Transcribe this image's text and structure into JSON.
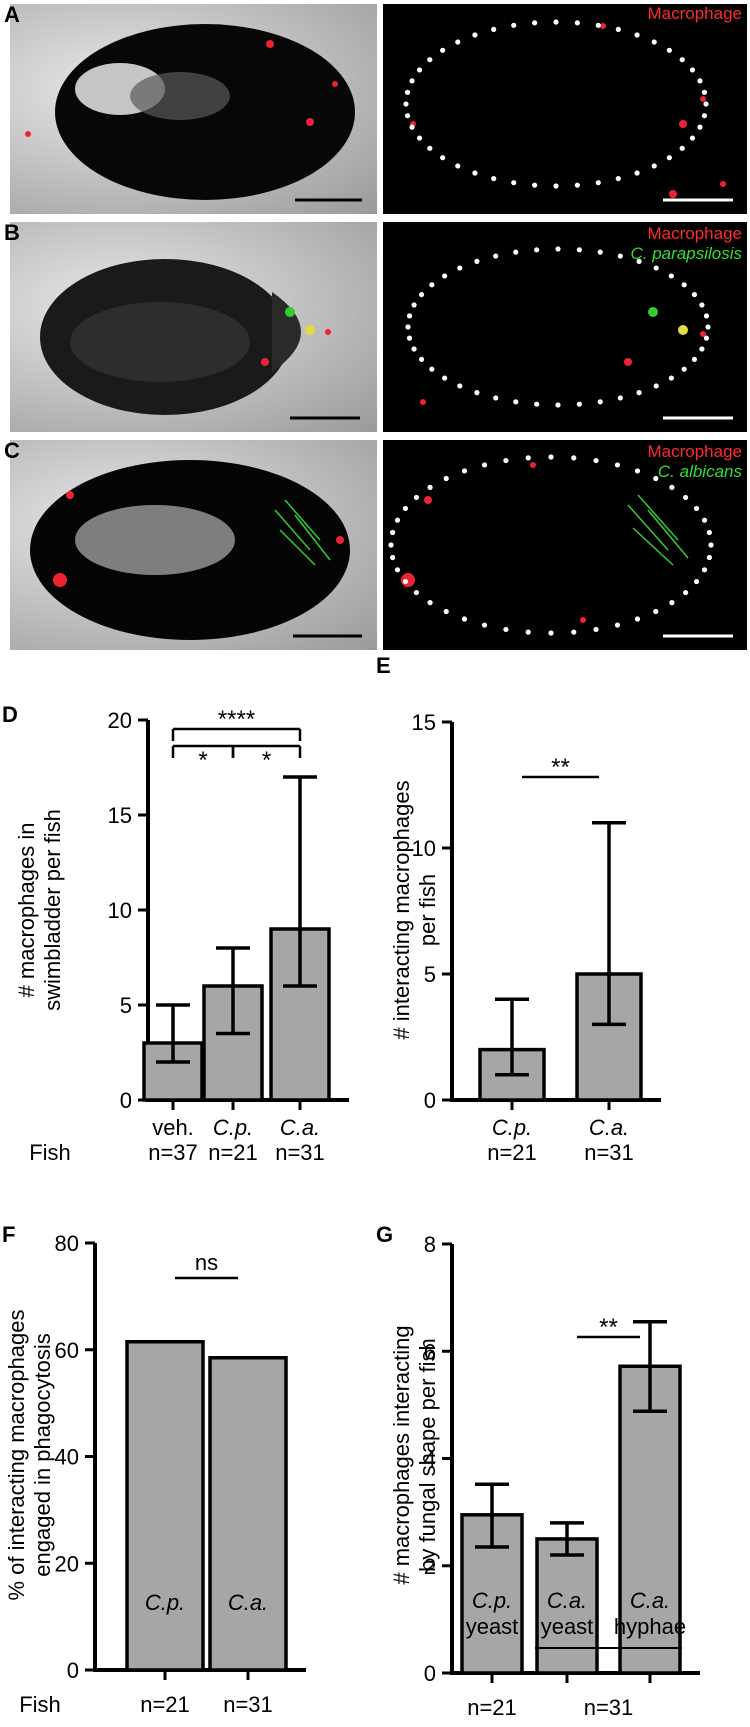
{
  "micrographs": {
    "rowA": {
      "letter": "A",
      "labels": [
        {
          "text": "Macrophage",
          "color": "#ff2a2a",
          "italic": false
        }
      ]
    },
    "rowB": {
      "letter": "B",
      "labels": [
        {
          "text": "Macrophage",
          "color": "#ff2a2a",
          "italic": false
        },
        {
          "text": "C. parapsilosis",
          "color": "#33dd33",
          "italic": true
        }
      ]
    },
    "rowC": {
      "letter": "C",
      "labels": [
        {
          "text": "Macrophage",
          "color": "#ff2a2a",
          "italic": false
        },
        {
          "text": "C. albicans",
          "color": "#33dd33",
          "italic": true
        }
      ]
    }
  },
  "fish_label": "Fish",
  "colors": {
    "bar_fill": "#a6a6a6",
    "macrophage": "#ff2a2a",
    "fungus": "#33dd33"
  },
  "chart_data": [
    {
      "panel": "D",
      "type": "bar",
      "ylabel": [
        "# macrophages in",
        "swimbladder per fish"
      ],
      "categories": [
        "veh.",
        "C.p.",
        "C.a."
      ],
      "categories_italic": [
        false,
        true,
        true
      ],
      "values": [
        3,
        6,
        9
      ],
      "error_low": [
        2,
        3.5,
        6
      ],
      "error_high": [
        5,
        8,
        17
      ],
      "ylim": [
        0,
        20
      ],
      "yticks": [
        "0",
        "5",
        "10",
        "15",
        "20"
      ],
      "n_labels": [
        "n=37",
        "n=21",
        "n=31"
      ],
      "significance": [
        {
          "from": 0,
          "to": 2,
          "label": "****"
        },
        {
          "from": 0,
          "to": 1,
          "label": "*"
        },
        {
          "from": 1,
          "to": 2,
          "label": "*"
        }
      ]
    },
    {
      "panel": "E",
      "type": "bar",
      "ylabel": [
        "# interacting macrophages",
        "per fish"
      ],
      "categories": [
        "C.p.",
        "C.a."
      ],
      "categories_italic": [
        true,
        true
      ],
      "values": [
        2,
        5
      ],
      "error_low": [
        1,
        3
      ],
      "error_high": [
        4,
        11
      ],
      "ylim": [
        0,
        15
      ],
      "yticks": [
        "0",
        "5",
        "10",
        "15"
      ],
      "n_labels": [
        "n=21",
        "n=31"
      ],
      "significance": [
        {
          "from": 0,
          "to": 1,
          "label": "**"
        }
      ]
    },
    {
      "panel": "F",
      "type": "bar",
      "ylabel": [
        "% of interacting macrophages",
        "engaged in phagocytosis"
      ],
      "categories": [
        "C.p.",
        "C.a."
      ],
      "categories_italic": [
        true,
        true
      ],
      "values": [
        61.5,
        58.5
      ],
      "ylim": [
        0,
        80
      ],
      "yticks": [
        "0",
        "20",
        "40",
        "60",
        "80"
      ],
      "n_labels": [
        "n=21",
        "n=31"
      ],
      "significance": [
        {
          "from": 0,
          "to": 1,
          "label": "ns"
        }
      ]
    },
    {
      "panel": "G",
      "type": "bar",
      "ylabel": [
        "# macrophages interacting",
        "by fungal shape per fish"
      ],
      "categories": [
        "C.p.",
        "C.a.",
        "C.a."
      ],
      "categories_italic": [
        true,
        true,
        true
      ],
      "sublabels": [
        "yeast",
        "yeast",
        "hyphae"
      ],
      "values": [
        2.95,
        2.5,
        5.72
      ],
      "error_low": [
        2.35,
        2.2,
        4.88
      ],
      "error_high": [
        3.52,
        2.8,
        6.55
      ],
      "ylim": [
        0,
        8
      ],
      "yticks": [
        "0",
        "2",
        "4",
        "6",
        "8"
      ],
      "n_labels": [
        "n=21",
        "n=31"
      ],
      "significance": [
        {
          "from": 1,
          "to": 2,
          "label": "**"
        }
      ]
    }
  ]
}
